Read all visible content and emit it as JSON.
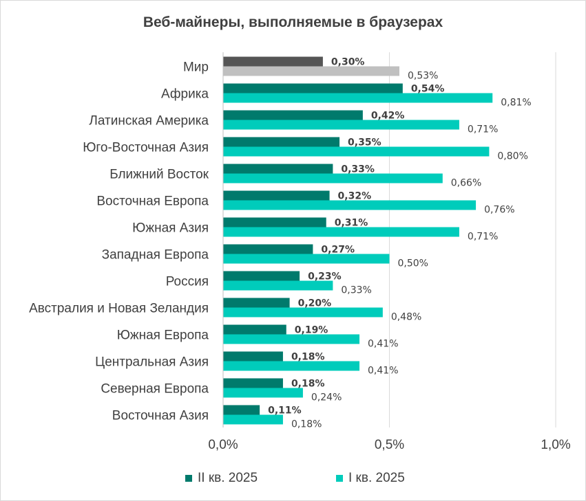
{
  "chart_data": {
    "type": "bar",
    "orientation": "horizontal",
    "title": "Веб-майнеры, выполняемые в браузерах",
    "categories": [
      "Мир",
      "Африка",
      "Латинская Америка",
      "Юго-Восточная Азия",
      "Ближний Восток",
      "Восточная Европа",
      "Южная Азия",
      "Западная Европа",
      "Россия",
      "Австралия и Новая Зеландия",
      "Южная Европа",
      "Центральная Азия",
      "Северная Европа",
      "Восточная Азия"
    ],
    "series": [
      {
        "name": "II кв. 2025",
        "values": [
          0.3,
          0.54,
          0.42,
          0.35,
          0.33,
          0.32,
          0.31,
          0.27,
          0.23,
          0.2,
          0.19,
          0.18,
          0.18,
          0.11
        ],
        "labels": [
          "0,30%",
          "0,54%",
          "0,42%",
          "0,35%",
          "0,33%",
          "0,32%",
          "0,31%",
          "0,27%",
          "0,23%",
          "0,20%",
          "0,19%",
          "0,18%",
          "0,18%",
          "0,11%"
        ],
        "color": "#007a6c",
        "first_color": "#555555"
      },
      {
        "name": "I кв. 2025",
        "values": [
          0.53,
          0.81,
          0.71,
          0.8,
          0.66,
          0.76,
          0.71,
          0.5,
          0.33,
          0.48,
          0.41,
          0.41,
          0.24,
          0.18
        ],
        "labels": [
          "0,53%",
          "0,81%",
          "0,71%",
          "0,80%",
          "0,66%",
          "0,76%",
          "0,71%",
          "0,50%",
          "0,33%",
          "0,48%",
          "0,41%",
          "0,41%",
          "0,24%",
          "0,18%"
        ],
        "color": "#00ccbb",
        "first_color": "#c0c0c0"
      }
    ],
    "xlim": [
      0,
      1.0
    ],
    "xticks": [
      0,
      0.5,
      1.0
    ],
    "xtick_labels": [
      "0,0%",
      "0,5%",
      "1,0%"
    ],
    "grid": true,
    "legend_position": "bottom"
  }
}
